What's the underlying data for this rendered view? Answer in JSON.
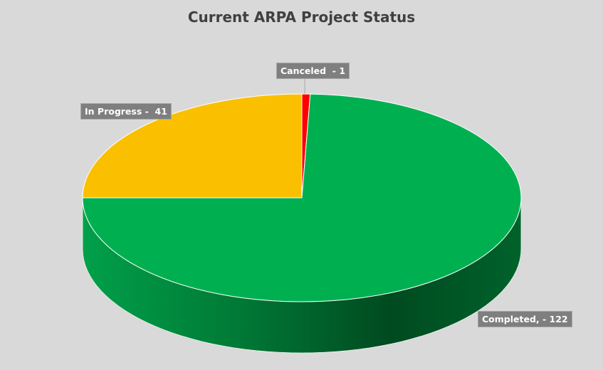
{
  "chart_data": {
    "type": "pie",
    "style": "3d",
    "title": "Current ARPA Project Status",
    "start": "top, clockwise",
    "slices": [
      {
        "label": "Canceled",
        "value": 1,
        "data_label": "Canceled  - 1",
        "color": "#ff0000"
      },
      {
        "label": "Completed",
        "value": 122,
        "data_label": "Completed, - 122",
        "color": "#00b050"
      },
      {
        "label": "In Progress",
        "value": 41,
        "data_label": "In Progress -  41",
        "color": "#fac000"
      }
    ],
    "legend": "none"
  }
}
